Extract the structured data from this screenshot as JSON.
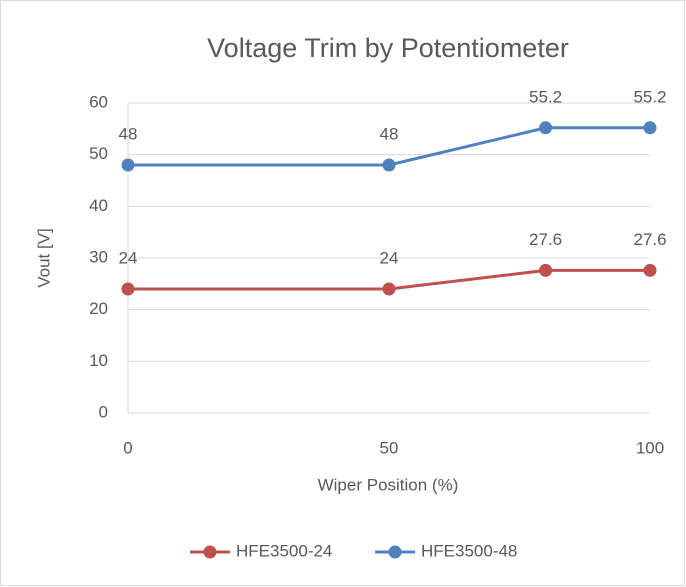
{
  "chart_data": {
    "type": "line",
    "title": "Voltage Trim by Potentiometer",
    "x_label": "Wiper Position (%)",
    "y_label": "Vout [V]",
    "x": [
      0,
      50,
      80,
      100
    ],
    "series": [
      {
        "name": "HFE3500-24",
        "color": "#c0504d",
        "values": [
          24,
          24,
          27.6,
          27.6
        ]
      },
      {
        "name": "HFE3500-48",
        "color": "#4f81bd",
        "values": [
          48,
          48,
          55.2,
          55.2
        ]
      }
    ],
    "xlim": [
      0,
      100
    ],
    "xticks": [
      0,
      50,
      100
    ],
    "ylim": [
      0,
      60
    ],
    "yticks": [
      0,
      10,
      20,
      30,
      40,
      50,
      60
    ],
    "grid": true,
    "legend": "bottom"
  }
}
